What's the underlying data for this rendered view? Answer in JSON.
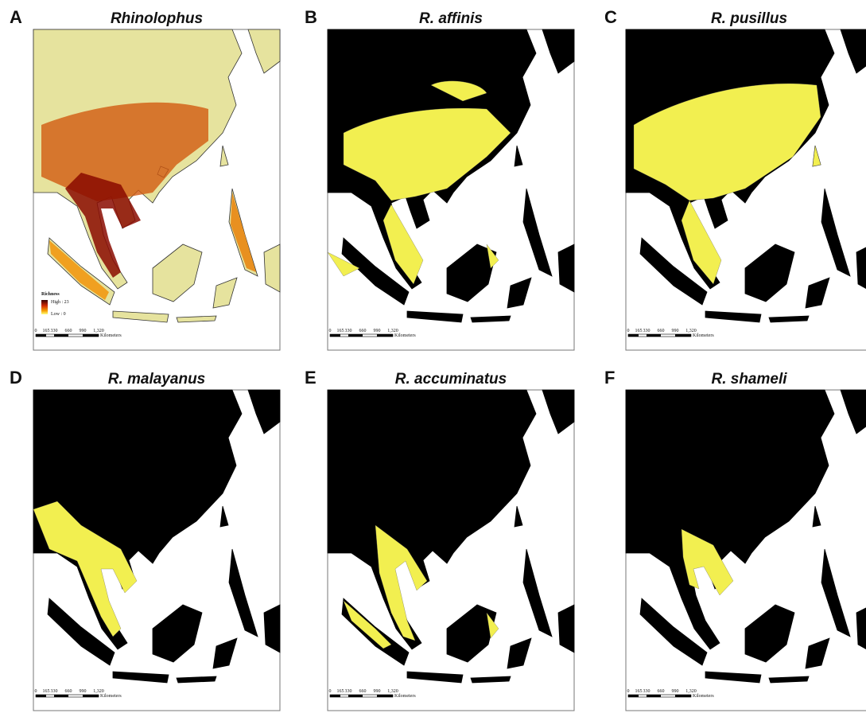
{
  "panels": [
    {
      "letter": "A",
      "title": "Rhinolophus"
    },
    {
      "letter": "B",
      "title": "R. affinis"
    },
    {
      "letter": "C",
      "title": "R. pusillus"
    },
    {
      "letter": "D",
      "title": "R. malayanus"
    },
    {
      "letter": "E",
      "title": "R. accuminatus"
    },
    {
      "letter": "F",
      "title": "R. shameli"
    }
  ],
  "legend": {
    "title": "Richness",
    "high": "High : 23",
    "low": "Low : 0"
  },
  "scale_bar": {
    "ticks": [
      "0",
      "165",
      "330",
      "660",
      "990",
      "1,320"
    ],
    "unit": "Kilometers"
  }
}
